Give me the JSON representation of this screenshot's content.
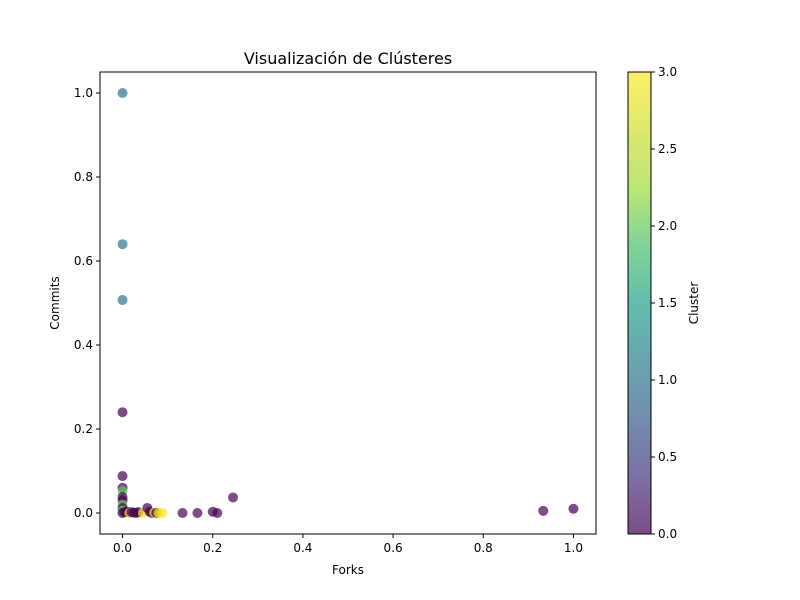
{
  "chart_data": {
    "type": "scatter",
    "title": "Visualización de Clústeres",
    "xlabel": "Forks",
    "ylabel": "Commits",
    "xlim": [
      -0.05,
      1.05
    ],
    "ylim": [
      -0.05,
      1.05
    ],
    "xticks": [
      "0.0",
      "0.2",
      "0.4",
      "0.6",
      "0.8",
      "1.0"
    ],
    "yticks": [
      "0.0",
      "0.2",
      "0.4",
      "0.6",
      "0.8",
      "1.0"
    ],
    "grid": false,
    "colorbar": {
      "label": "Cluster",
      "colormap": "viridis",
      "range": [
        0,
        3
      ],
      "ticks": [
        "0.0",
        "0.5",
        "1.0",
        "1.5",
        "2.0",
        "2.5",
        "3.0"
      ]
    },
    "marker_alpha": 0.7,
    "points": [
      {
        "x": 0.0,
        "y": 1.0,
        "cluster": 1
      },
      {
        "x": 0.0,
        "y": 0.64,
        "cluster": 1
      },
      {
        "x": 0.0,
        "y": 0.507,
        "cluster": 1
      },
      {
        "x": 0.0,
        "y": 0.24,
        "cluster": 0
      },
      {
        "x": 0.0,
        "y": 0.088,
        "cluster": 0
      },
      {
        "x": 0.0,
        "y": 0.06,
        "cluster": 0
      },
      {
        "x": 0.0,
        "y": 0.052,
        "cluster": 2
      },
      {
        "x": 0.0,
        "y": 0.038,
        "cluster": 0
      },
      {
        "x": 0.0,
        "y": 0.03,
        "cluster": 0
      },
      {
        "x": 0.0,
        "y": 0.02,
        "cluster": 2
      },
      {
        "x": 0.0,
        "y": 0.012,
        "cluster": 0
      },
      {
        "x": 0.0,
        "y": 0.005,
        "cluster": 2
      },
      {
        "x": 0.0,
        "y": 0.0,
        "cluster": 0
      },
      {
        "x": 0.005,
        "y": 0.002,
        "cluster": 0
      },
      {
        "x": 0.01,
        "y": 0.003,
        "cluster": 0
      },
      {
        "x": 0.015,
        "y": 0.0,
        "cluster": 3
      },
      {
        "x": 0.02,
        "y": 0.002,
        "cluster": 0
      },
      {
        "x": 0.025,
        "y": 0.001,
        "cluster": 0
      },
      {
        "x": 0.03,
        "y": 0.0,
        "cluster": 0
      },
      {
        "x": 0.035,
        "y": 0.002,
        "cluster": 0
      },
      {
        "x": 0.045,
        "y": 0.0,
        "cluster": 3
      },
      {
        "x": 0.055,
        "y": 0.012,
        "cluster": 0
      },
      {
        "x": 0.06,
        "y": 0.003,
        "cluster": 0
      },
      {
        "x": 0.065,
        "y": 0.0,
        "cluster": 0
      },
      {
        "x": 0.07,
        "y": 0.001,
        "cluster": 3
      },
      {
        "x": 0.075,
        "y": 0.0,
        "cluster": 0
      },
      {
        "x": 0.08,
        "y": 0.0,
        "cluster": 3
      },
      {
        "x": 0.088,
        "y": 0.0,
        "cluster": 3
      },
      {
        "x": 0.133,
        "y": 0.0,
        "cluster": 0
      },
      {
        "x": 0.166,
        "y": 0.0,
        "cluster": 0
      },
      {
        "x": 0.2,
        "y": 0.003,
        "cluster": 0
      },
      {
        "x": 0.21,
        "y": 0.0,
        "cluster": 0
      },
      {
        "x": 0.245,
        "y": 0.037,
        "cluster": 0
      },
      {
        "x": 0.933,
        "y": 0.005,
        "cluster": 0
      },
      {
        "x": 1.0,
        "y": 0.01,
        "cluster": 0
      }
    ]
  }
}
